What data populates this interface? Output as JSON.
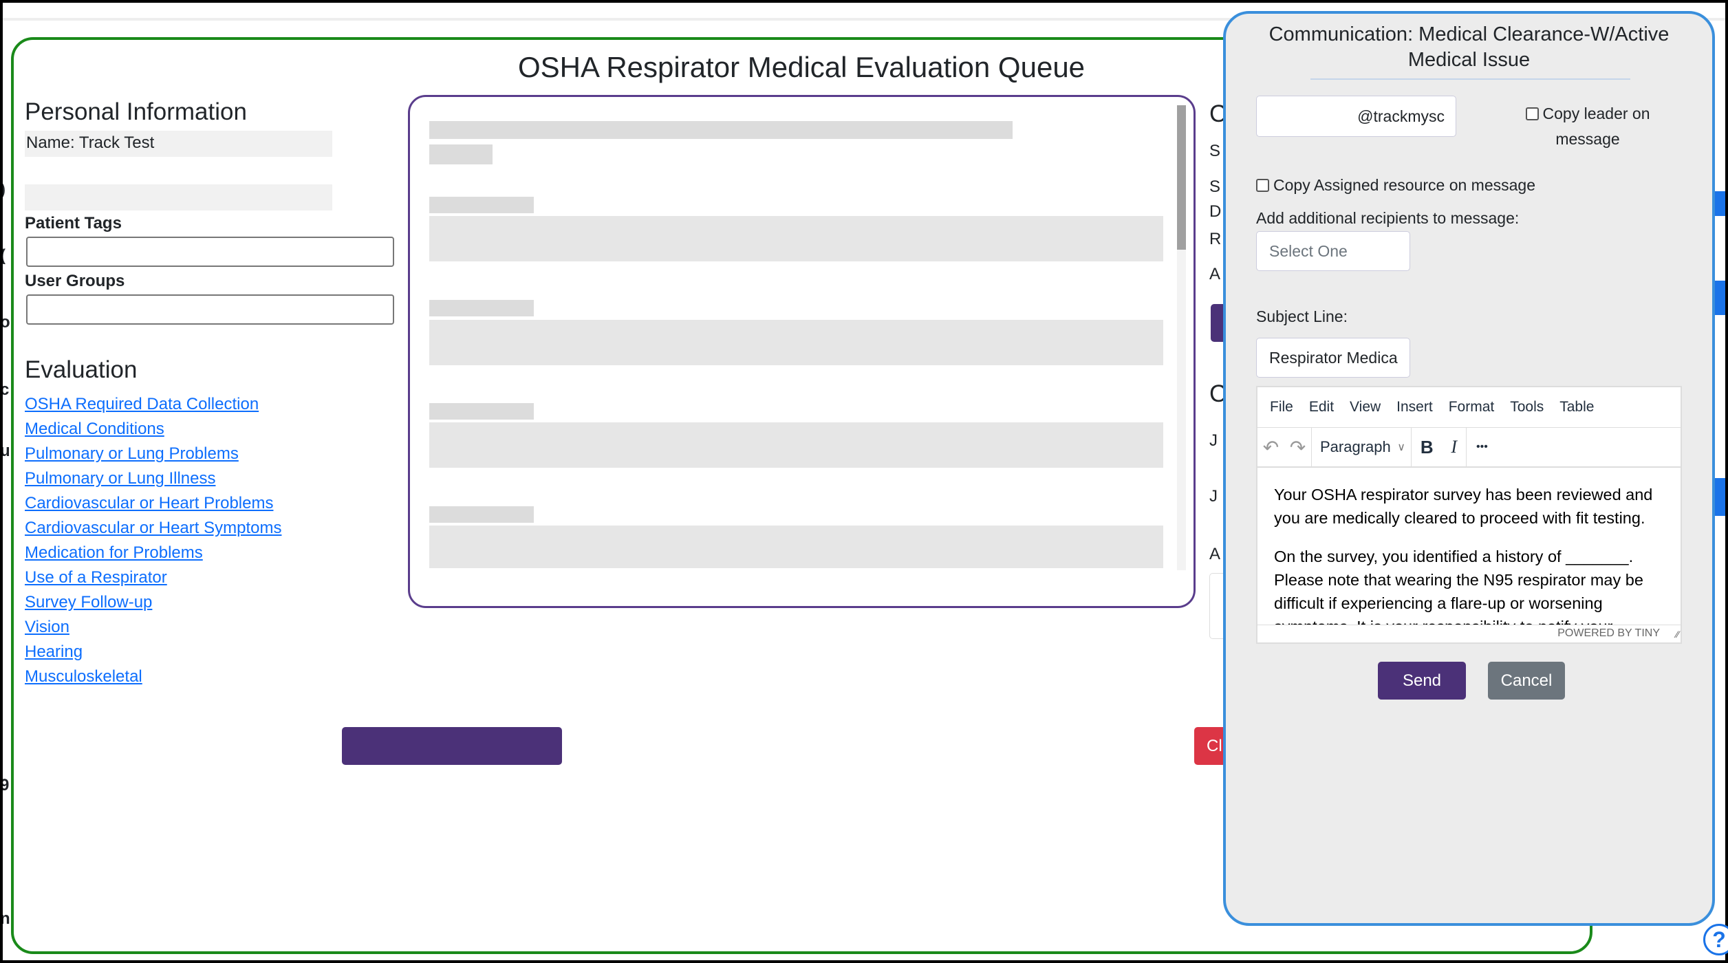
{
  "page": {
    "title": "OSHA Respirator Medical Evaluation Queue"
  },
  "personal": {
    "heading": "Personal Information",
    "name_field": "Name: Track Test",
    "patient_tags_label": "Patient Tags",
    "patient_tags_value": "",
    "user_groups_label": "User Groups",
    "user_groups_value": ""
  },
  "evaluation": {
    "heading": "Evaluation",
    "links": [
      "OSHA Required Data Collection",
      "Medical Conditions",
      "Pulmonary or Lung Problems",
      "Pulmonary or Lung Illness",
      "Cardiovascular or Heart Problems",
      "Cardiovascular or Heart Symptoms",
      "Medication for Problems",
      "Use of a Respirator",
      "Survey Follow-up",
      "Vision",
      "Hearing",
      "Musculoskeletal"
    ]
  },
  "right_column_fragments": [
    "C",
    "S",
    "S",
    "D",
    "R",
    "A",
    "C",
    "J",
    "J",
    "A"
  ],
  "left_edge_fragments": [
    ")",
    "(",
    "o",
    "c",
    "u",
    "9",
    "n"
  ],
  "close_button_fragment": "Cl",
  "modal": {
    "title": "Communication: Medical Clearance-W/Active Medical Issue",
    "email_value": "@trackmysc",
    "copy_leader_label": "Copy leader on message",
    "copy_assigned_label": "Copy Assigned resource on message",
    "additional_label": "Add additional recipients to message:",
    "recipients_placeholder": "Select One",
    "subject_label": "Subject Line:",
    "subject_value": "Respirator Medica",
    "editor": {
      "menu": [
        "File",
        "Edit",
        "View",
        "Insert",
        "Format",
        "Tools",
        "Table"
      ],
      "block_format": "Paragraph",
      "bold": "B",
      "italic": "I",
      "more": "•••",
      "para1": "Your OSHA respirator survey has been reviewed and you are medically cleared to proceed with fit testing.",
      "para2": "On the survey, you identified a history of _______. Please note that wearing the N95 respirator may be difficult if experiencing a flare-up or worsening symptoms. It is your responsibility to notify your",
      "branding": "POWERED BY TINY"
    },
    "send_label": "Send",
    "cancel_label": "Cancel"
  },
  "colors": {
    "primary": "#4b3178",
    "danger": "#dc3545",
    "secondary": "#6c757d",
    "modal_border": "#3a8fdc",
    "panel_border": "#1a8a1a",
    "link": "#0d6efd"
  },
  "help_icon": "question-circle-icon"
}
